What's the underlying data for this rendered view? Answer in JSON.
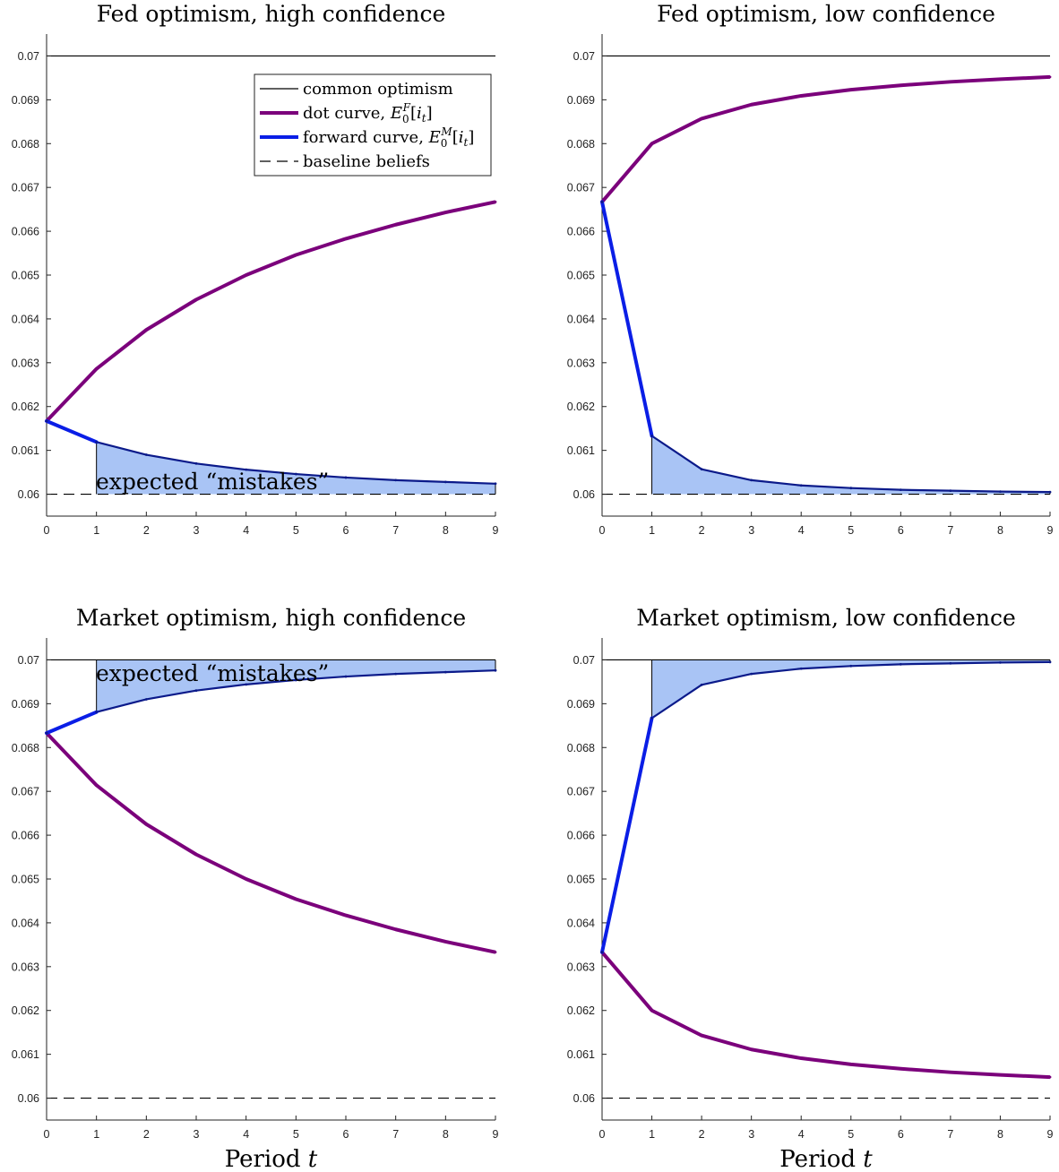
{
  "figure": {
    "xlabel": "Period t",
    "annotation": "expected “mistakes”",
    "legend": [
      {
        "label": "common optimism",
        "color": "#000000",
        "style": "solid-thin"
      },
      {
        "label": "dot curve, E0F[it]",
        "color": "#7b007b",
        "style": "solid-thick"
      },
      {
        "label": "forward curve, E0M[it]",
        "color": "#0a1ee6",
        "style": "solid-thick"
      },
      {
        "label": "baseline beliefs",
        "color": "#000000",
        "style": "dashed"
      }
    ],
    "colors": {
      "dot_curve": "#7b007b",
      "forward_curve": "#0a1ee6",
      "forward_dark": "#0b1a8a",
      "fill": "#a9c4f5",
      "common": "#000000",
      "baseline": "#000000"
    }
  },
  "chart_data": [
    {
      "type": "line",
      "title": "Fed optimism, high confidence",
      "xlabel": "",
      "ylabel": "",
      "xlim": [
        0,
        9
      ],
      "ylim": [
        0.0595,
        0.0705
      ],
      "x_ticks": [
        0,
        1,
        2,
        3,
        4,
        5,
        6,
        7,
        8,
        9
      ],
      "y_ticks": [
        "0.06",
        "0.061",
        "0.062",
        "0.063",
        "0.064",
        "0.065",
        "0.066",
        "0.067",
        "0.068",
        "0.069",
        "0.07"
      ],
      "common_optimism": 0.07,
      "baseline_beliefs": 0.06,
      "shaded_reference": 0.06,
      "x": [
        0,
        1,
        2,
        3,
        4,
        5,
        6,
        7,
        8,
        9
      ],
      "series": [
        {
          "name": "dot curve",
          "values": [
            0.06167,
            0.06286,
            0.06375,
            0.06444,
            0.065,
            0.06546,
            0.06583,
            0.06615,
            0.06643,
            0.06667
          ]
        },
        {
          "name": "forward curve",
          "values": [
            0.06167,
            0.06119,
            0.0609,
            0.0607,
            0.06056,
            0.06046,
            0.06038,
            0.06032,
            0.06028,
            0.06024
          ]
        }
      ],
      "annotation": true,
      "legend": true
    },
    {
      "type": "line",
      "title": "Fed optimism, low confidence",
      "xlabel": "",
      "ylabel": "",
      "xlim": [
        0,
        9
      ],
      "ylim": [
        0.0595,
        0.0705
      ],
      "x_ticks": [
        0,
        1,
        2,
        3,
        4,
        5,
        6,
        7,
        8,
        9
      ],
      "y_ticks": [
        "0.06",
        "0.061",
        "0.062",
        "0.063",
        "0.064",
        "0.065",
        "0.066",
        "0.067",
        "0.068",
        "0.069",
        "0.07"
      ],
      "common_optimism": 0.07,
      "baseline_beliefs": 0.06,
      "shaded_reference": 0.06,
      "x": [
        0,
        1,
        2,
        3,
        4,
        5,
        6,
        7,
        8,
        9
      ],
      "series": [
        {
          "name": "dot curve",
          "values": [
            0.06667,
            0.068,
            0.06857,
            0.06889,
            0.06909,
            0.06923,
            0.06933,
            0.06941,
            0.06947,
            0.06952
          ]
        },
        {
          "name": "forward curve",
          "values": [
            0.06667,
            0.06133,
            0.06057,
            0.06032,
            0.0602,
            0.06014,
            0.0601,
            0.06008,
            0.06006,
            0.06005
          ]
        }
      ],
      "annotation": false,
      "legend": false
    },
    {
      "type": "line",
      "title": "Market optimism, high confidence",
      "xlabel": "Period t",
      "ylabel": "",
      "xlim": [
        0,
        9
      ],
      "ylim": [
        0.0595,
        0.0705
      ],
      "x_ticks": [
        0,
        1,
        2,
        3,
        4,
        5,
        6,
        7,
        8,
        9
      ],
      "y_ticks": [
        "0.06",
        "0.061",
        "0.062",
        "0.063",
        "0.064",
        "0.065",
        "0.066",
        "0.067",
        "0.068",
        "0.069",
        "0.07"
      ],
      "common_optimism": 0.07,
      "baseline_beliefs": 0.06,
      "shaded_reference": 0.07,
      "x": [
        0,
        1,
        2,
        3,
        4,
        5,
        6,
        7,
        8,
        9
      ],
      "series": [
        {
          "name": "dot curve",
          "values": [
            0.06833,
            0.06714,
            0.06625,
            0.06556,
            0.065,
            0.06454,
            0.06417,
            0.06385,
            0.06357,
            0.06333
          ]
        },
        {
          "name": "forward curve",
          "values": [
            0.06833,
            0.06881,
            0.0691,
            0.0693,
            0.06944,
            0.06954,
            0.06962,
            0.06968,
            0.06972,
            0.06976
          ]
        }
      ],
      "annotation": true,
      "legend": false
    },
    {
      "type": "line",
      "title": "Market optimism, low confidence",
      "xlabel": "Period t",
      "ylabel": "",
      "xlim": [
        0,
        9
      ],
      "ylim": [
        0.0595,
        0.0705
      ],
      "x_ticks": [
        0,
        1,
        2,
        3,
        4,
        5,
        6,
        7,
        8,
        9
      ],
      "y_ticks": [
        "0.06",
        "0.061",
        "0.062",
        "0.063",
        "0.064",
        "0.065",
        "0.066",
        "0.067",
        "0.068",
        "0.069",
        "0.07"
      ],
      "common_optimism": 0.07,
      "baseline_beliefs": 0.06,
      "shaded_reference": 0.07,
      "x": [
        0,
        1,
        2,
        3,
        4,
        5,
        6,
        7,
        8,
        9
      ],
      "series": [
        {
          "name": "dot curve",
          "values": [
            0.06333,
            0.062,
            0.06143,
            0.06111,
            0.06091,
            0.06077,
            0.06067,
            0.06059,
            0.06053,
            0.06048
          ]
        },
        {
          "name": "forward curve",
          "values": [
            0.06333,
            0.06867,
            0.06943,
            0.06968,
            0.0698,
            0.06986,
            0.0699,
            0.06992,
            0.06994,
            0.06995
          ]
        }
      ],
      "annotation": false,
      "legend": false
    }
  ]
}
